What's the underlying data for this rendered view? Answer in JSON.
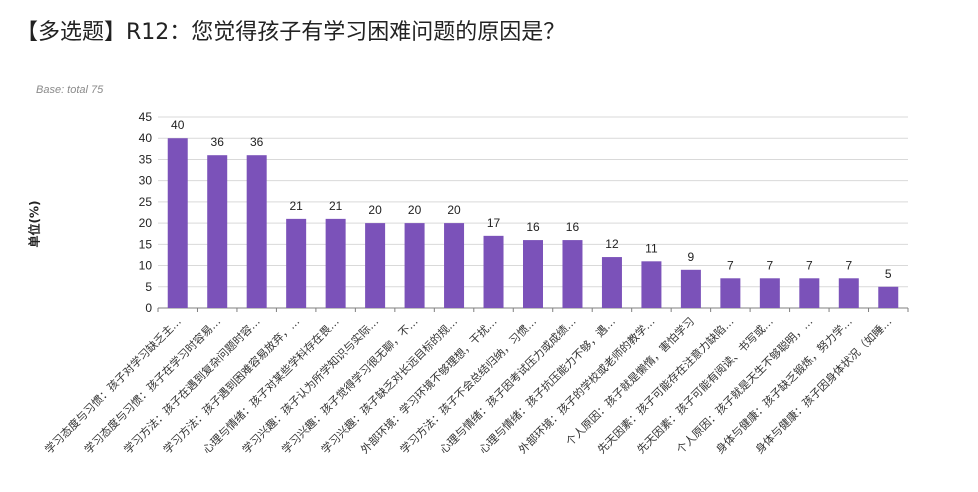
{
  "title": "【多选题】R12：您觉得孩子有学习困难问题的原因是？",
  "base_note": "Base: total 75",
  "chart_data": {
    "type": "bar",
    "title": "【多选题】R12：您觉得孩子有学习困难问题的原因是？",
    "ylabel": "单位(%)",
    "xlabel": "",
    "ylim": [
      0,
      45
    ],
    "yticks": [
      0,
      5,
      10,
      15,
      20,
      25,
      30,
      35,
      40,
      45
    ],
    "grid": true,
    "bar_color": "#7b52b9",
    "categories": [
      "学习态度与习惯：孩子对学习缺乏主…",
      "学习态度与习惯：孩子在学习时容易…",
      "学习方法：孩子在遇到复杂问题时容…",
      "学习方法：孩子遇到困难容易放弃，…",
      "心理与情绪：孩子对某些学科存在畏…",
      "学习兴趣：孩子认为所学知识与实际…",
      "学习兴趣：孩子觉得学习很无聊，不…",
      "学习兴趣：孩子缺乏对长远目标的规…",
      "外部环境：学习环境不够理想，干扰…",
      "学习方法：孩子不会总结归纳，习惯…",
      "心理与情绪：孩子因考试压力或成绩…",
      "心理与情绪：孩子抗压能力不够，遇…",
      "外部环境：孩子的学校或老师的教学…",
      "个人原因：孩子就是懒惰，害怕学习",
      "先天因素：孩子可能存在注意力缺陷…",
      "先天因素：孩子可能有阅读、书写或…",
      "个人原因：孩子就是天生不够聪明，…",
      "身体与健康：孩子缺乏锻炼，努力学…",
      "身体与健康：孩子因身体状况（如睡…"
    ],
    "values": [
      40,
      36,
      36,
      21,
      21,
      20,
      20,
      20,
      17,
      16,
      16,
      12,
      11,
      9,
      7,
      7,
      7,
      7,
      5
    ]
  }
}
